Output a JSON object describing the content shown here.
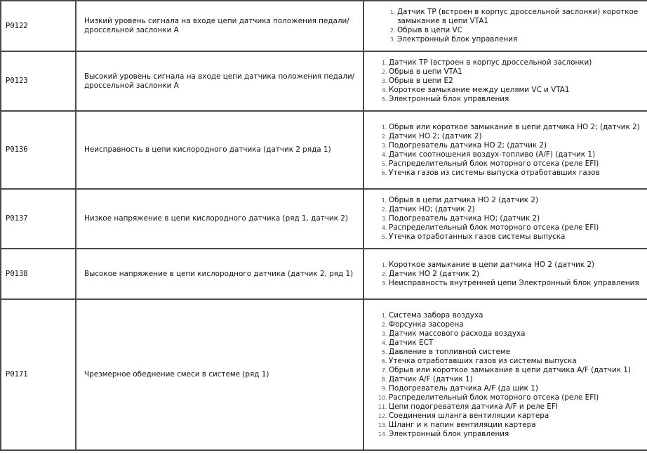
{
  "rows": [
    {
      "code": "P0122",
      "description": "Низкий уровень сигнала на входе цепи датчика положения педали/дроссельной заслонки A",
      "causes": [
        "Датчик TP (встроен в корпус дроссельной заслонки) короткое замыкание в цепи VTA1",
        "Обрыв в цепи VC",
        "Электронный блок управления"
      ]
    },
    {
      "code": "P0123",
      "description": "Высокий уровень сигнала на входе цепи датчика положения педали/дроссельной заслонки A",
      "causes": [
        "Датчик TP (встроен в корпус дроссельной заслонки)",
        "Обрыв в цепи VTA1",
        "Обрыв в цепи E2",
        "Короткое замыкание между целями VC и VTA1",
        "Электронный блок управления"
      ]
    },
    {
      "code": "P0136",
      "description": "Неисправность в цепи кислородного датчика (датчик 2 ряда 1)",
      "causes": [
        "Обрыв или короткое замыкание в цепи датчика HO 2; (датчик 2)",
        "Датчик HO 2; (датчик 2)",
        "Подогреватель датчика HO 2; (датчик 2)",
        "Датчик соотношения воздух-топливо (A/F) (датчик 1)",
        "Распределительный блок моторного отсека (реле EFI)",
        "Утечка газов из системы выпуска отработавших газов"
      ]
    },
    {
      "code": "P0137",
      "description": "Низкое напряжение в цепи кислородного датчика (ряд 1, датчик 2)",
      "causes": [
        "Обрыв в цепи датчика HO 2 (датчик 2)",
        "Датчик HO; (датчик 2)",
        "Подогреватель датчика HO; (датчик 2)",
        "Распределительный блок моторного отсека (реле EFI)",
        "Утечка отработанных газов системы выпуска"
      ]
    },
    {
      "code": "P0138",
      "description": "Высокое напряжение в цепи кислородного датчика (датчик 2, ряд 1)",
      "causes": [
        "Короткое замыкание в цепи датчика HO 2 (датчик 2)",
        "Датчик HO 2 (датчик 2)",
        "Неисправность внутренней цепи Электронный блок управления"
      ]
    },
    {
      "code": "P0171",
      "description": "Чрезмерное обеднение смеси в системе (ряд 1)",
      "causes": [
        "Система забора воздуха",
        "Форсунка засорена",
        "Датчик массового расхода воздуха",
        "Датчик ECT",
        "Давление в топливной системе",
        "Утечка отработавших газов из системы выпуска",
        "Обрыв или короткое замыкание в цепи датчика A/F (датчик 1)",
        "Датчик A/F (датчик 1)",
        "Подогреватель датчика A/F (да шик 1)",
        "Распределительный блок моторного отсека (реле EFI)",
        "Цепи подогревателя датчика A/F и реле EFI",
        "Соединения шланга вентиляции картера",
        "Шланг и к папин вентиляции картера",
        "Электронный блок управления"
      ]
    }
  ]
}
